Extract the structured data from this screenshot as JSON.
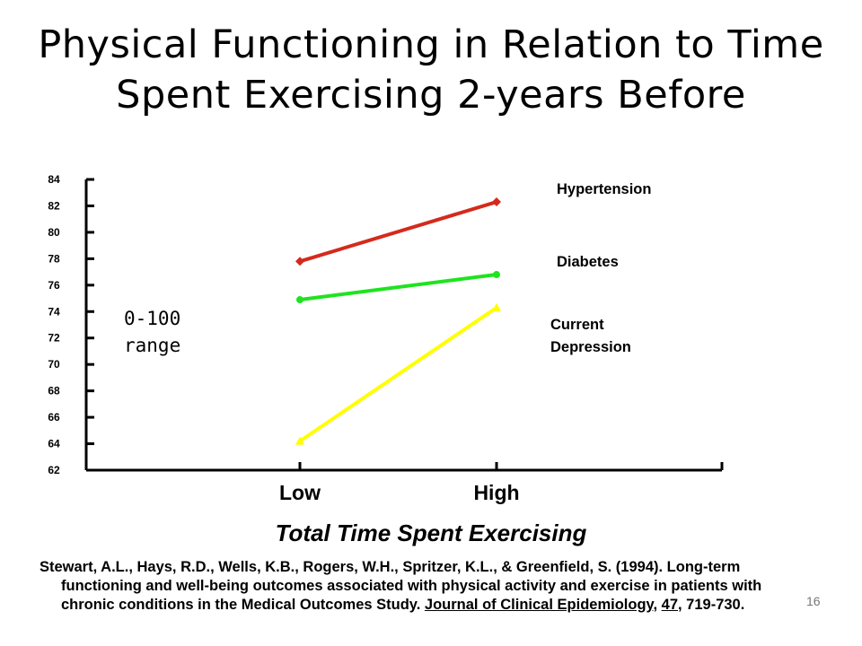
{
  "title": {
    "line1": "Physical Functioning in Relation to Time",
    "line2": "Spent Exercising 2-years Before"
  },
  "chart_data": {
    "type": "line",
    "categories": [
      "Low",
      "High"
    ],
    "xlabel": "Total Time Spent Exercising",
    "ylabel": "",
    "ylim": [
      62,
      84
    ],
    "yticks": [
      62,
      64,
      66,
      68,
      70,
      72,
      74,
      76,
      78,
      80,
      82,
      84
    ],
    "grid": false,
    "series": [
      {
        "name": "Hypertension",
        "values": [
          77.8,
          82.3
        ],
        "color": "#d42a1c",
        "marker": "diamond"
      },
      {
        "name": "Diabetes",
        "values": [
          74.9,
          76.8
        ],
        "color": "#1fe31f",
        "marker": "circle"
      },
      {
        "name": "Current Depression",
        "values": [
          64.2,
          74.3
        ],
        "color": "#ffff00",
        "marker": "triangle"
      }
    ],
    "annotations": [
      {
        "text_line1": "0-100",
        "text_line2": "range"
      }
    ]
  },
  "citation": {
    "authors": "Stewart, A.L., Hays, R.D., Wells, K.B., Rogers, W.H., Spritzer, K.L., & Greenfield, S.  (1994).  Long-term",
    "line2": "functioning and well-being outcomes associated with physical activity and exercise in patients with",
    "line3_prefix": "chronic conditions in the Medical Outcomes Study.  ",
    "journal": "Journal of Clinical Epidemiology",
    "sep1": ", ",
    "volume": "47",
    "pages": ", 719-730."
  },
  "slide_number": "16"
}
